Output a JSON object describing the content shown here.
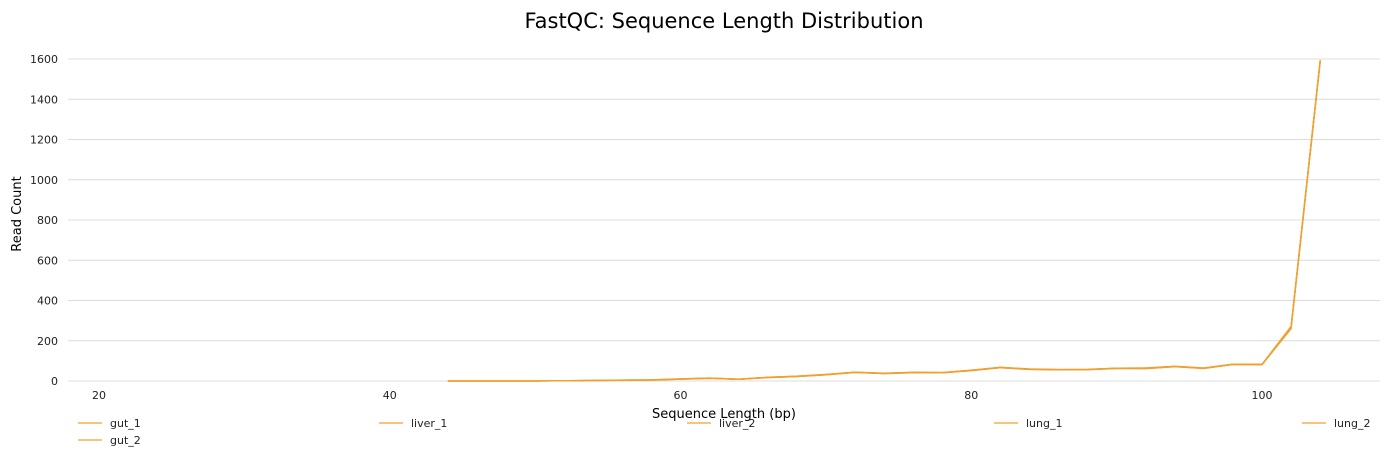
{
  "chart_data": {
    "type": "line",
    "title": "FastQC: Sequence Length Distribution",
    "xlabel": "Sequence Length (bp)",
    "ylabel": "Read Count",
    "xlim": [
      18,
      108
    ],
    "ylim": [
      0,
      1650
    ],
    "xticks": [
      20,
      40,
      60,
      80,
      100
    ],
    "yticks": [
      0,
      200,
      400,
      600,
      800,
      1000,
      1200,
      1400,
      1600
    ],
    "grid": true,
    "legend_position": "bottom",
    "line_color": "#f0a030",
    "series": [
      {
        "name": "gut_1",
        "x": [
          44,
          50,
          54,
          58,
          60,
          62,
          64,
          66,
          68,
          70,
          72,
          74,
          76,
          78,
          80,
          82,
          84,
          86,
          88,
          90,
          92,
          94,
          96,
          98,
          100,
          102,
          104
        ],
        "values": [
          0,
          0,
          2,
          5,
          10,
          14,
          8,
          18,
          23,
          32,
          43,
          38,
          42,
          41,
          52,
          67,
          58,
          56,
          57,
          63,
          63,
          72,
          63,
          83,
          82,
          265,
          1590
        ]
      },
      {
        "name": "gut_2",
        "x": [
          44,
          50,
          54,
          58,
          60,
          62,
          64,
          66,
          68,
          70,
          72,
          74,
          76,
          78,
          80,
          82,
          84,
          86,
          88,
          90,
          92,
          94,
          96,
          98,
          100,
          102,
          104
        ],
        "values": [
          0,
          0,
          3,
          6,
          11,
          15,
          9,
          19,
          24,
          33,
          44,
          39,
          43,
          42,
          54,
          68,
          60,
          57,
          58,
          64,
          65,
          73,
          65,
          84,
          83,
          270,
          1595
        ]
      },
      {
        "name": "liver_1",
        "x": [
          44,
          50,
          54,
          58,
          60,
          62,
          64,
          66,
          68,
          70,
          72,
          74,
          76,
          78,
          80,
          82,
          84,
          86,
          88,
          90,
          92,
          94,
          96,
          98,
          100,
          102,
          104
        ],
        "values": [
          0,
          0,
          2,
          5,
          9,
          13,
          8,
          17,
          22,
          31,
          42,
          37,
          41,
          40,
          51,
          66,
          57,
          55,
          56,
          62,
          61,
          71,
          62,
          82,
          81,
          260,
          1585
        ]
      },
      {
        "name": "liver_2",
        "x": [
          44,
          50,
          54,
          58,
          60,
          62,
          64,
          66,
          68,
          70,
          72,
          74,
          76,
          78,
          80,
          82,
          84,
          86,
          88,
          90,
          92,
          94,
          96,
          98,
          100,
          102,
          104
        ],
        "values": [
          0,
          0,
          3,
          5,
          10,
          14,
          9,
          18,
          23,
          32,
          43,
          38,
          42,
          42,
          53,
          67,
          59,
          56,
          57,
          63,
          64,
          72,
          64,
          83,
          82,
          268,
          1592
        ]
      },
      {
        "name": "lung_1",
        "x": [
          44,
          50,
          54,
          58,
          60,
          62,
          64,
          66,
          68,
          70,
          72,
          74,
          76,
          78,
          80,
          82,
          84,
          86,
          88,
          90,
          92,
          94,
          96,
          98,
          100,
          102,
          104
        ],
        "values": [
          0,
          0,
          2,
          4,
          9,
          13,
          8,
          17,
          22,
          31,
          42,
          37,
          41,
          40,
          52,
          66,
          58,
          55,
          56,
          62,
          62,
          71,
          63,
          82,
          81,
          262,
          1588
        ]
      },
      {
        "name": "lung_2",
        "x": [
          44,
          50,
          54,
          58,
          60,
          62,
          64,
          66,
          68,
          70,
          72,
          74,
          76,
          78,
          80,
          82,
          84,
          86,
          88,
          90,
          92,
          94,
          96,
          98,
          100,
          102,
          104
        ],
        "values": [
          0,
          0,
          3,
          6,
          10,
          15,
          9,
          18,
          24,
          33,
          44,
          38,
          43,
          41,
          53,
          68,
          59,
          57,
          57,
          64,
          64,
          73,
          64,
          84,
          82,
          272,
          1594
        ]
      }
    ]
  }
}
